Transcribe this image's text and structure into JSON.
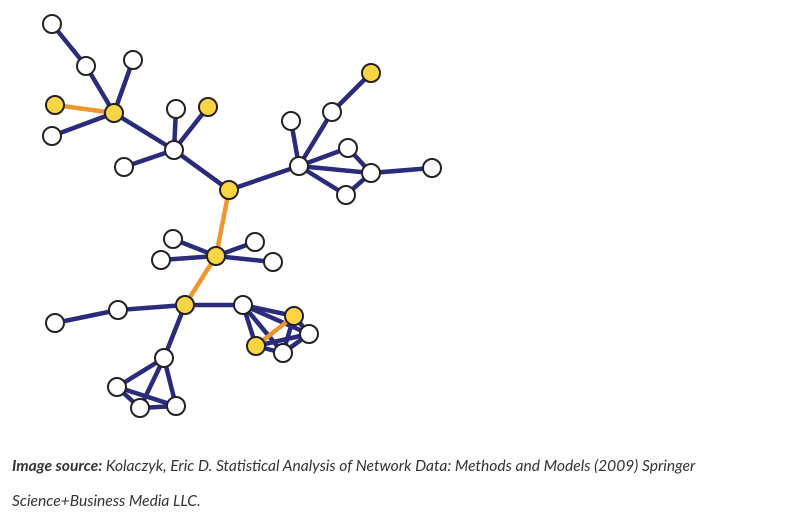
{
  "caption": {
    "label": "Image source:",
    "text": "Kolaczyk, Eric D. Statistical Analysis of Network Data: Methods and Models (2009) Springer Science+Business Media LLC."
  }
}
